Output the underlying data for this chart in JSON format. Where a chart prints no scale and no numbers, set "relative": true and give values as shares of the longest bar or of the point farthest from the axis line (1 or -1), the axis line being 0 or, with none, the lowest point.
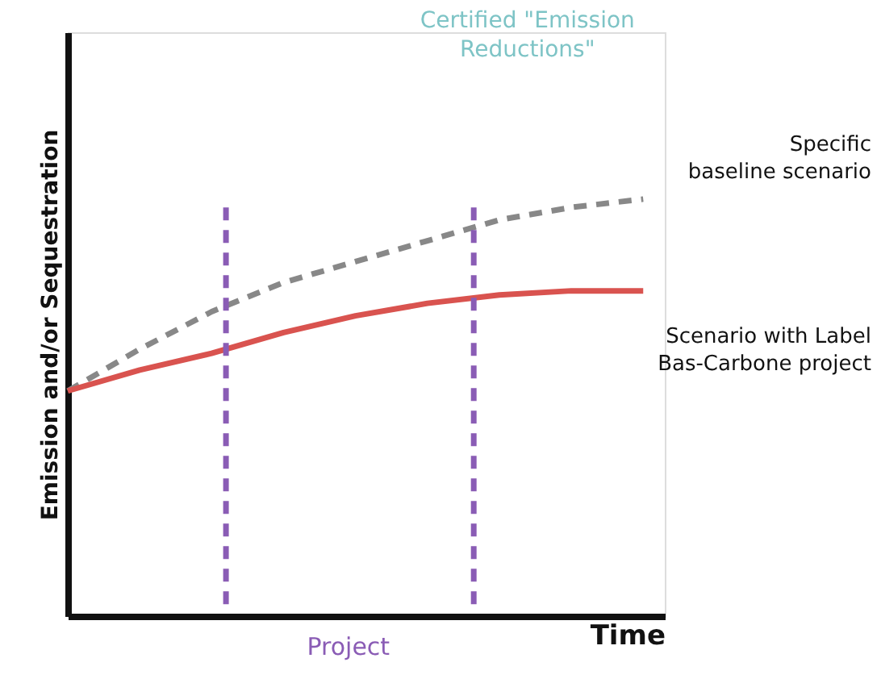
{
  "chart_data": {
    "type": "line",
    "relative": true,
    "xlabel": "Time",
    "ylabel": "Emission and/or Sequestration",
    "tick_labels": false,
    "categories": [
      null,
      null,
      null,
      null,
      null,
      null,
      null,
      null,
      null
    ],
    "series": [
      {
        "name": "Specific baseline scenario",
        "color": "#888888",
        "line_style": "dashed",
        "values": [
          0.54,
          0.64,
          0.73,
          0.8,
          0.85,
          0.9,
          0.95,
          0.98,
          1
        ]
      },
      {
        "name": "Scenario with Label Bas-Carbone project",
        "color": "#d9534f",
        "line_style": "solid",
        "values": [
          0.54,
          0.59,
          0.63,
          0.68,
          0.72,
          0.75,
          0.77,
          0.78,
          0.78
        ]
      }
    ],
    "annotations": [
      "Certified \"Emission Reductions\"",
      "Project"
    ]
  }
}
